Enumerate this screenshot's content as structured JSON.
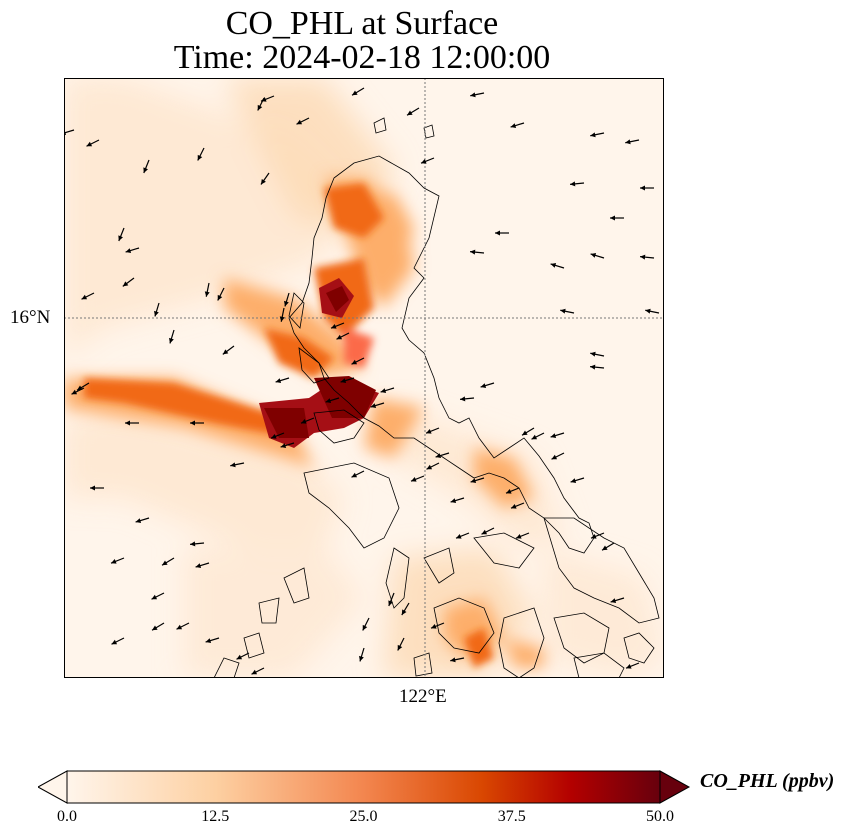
{
  "header": {
    "title_line1": "CO_PHL at Surface",
    "title_line2": "Time: 2024-02-18 12:00:00"
  },
  "axes": {
    "lat_label": "16°N",
    "lon_label": "122°E"
  },
  "colorbar": {
    "label": "CO_PHL (ppbv)",
    "ticks": [
      "0.0",
      "12.5",
      "25.0",
      "37.5",
      "50.0"
    ],
    "min": 0,
    "max": 50,
    "colormap": [
      "#fff5eb",
      "#fdd0a2",
      "#fd8d3c",
      "#d94801",
      "#a50f15",
      "#67000d"
    ],
    "extend": "both"
  },
  "map": {
    "gridlines": "dotted",
    "plume_color_max": "#7f0000",
    "coastline_color": "#000000",
    "wind_vectors": true
  }
}
